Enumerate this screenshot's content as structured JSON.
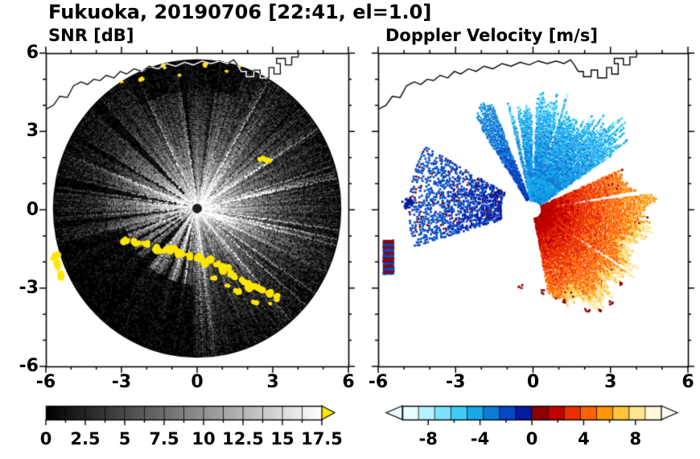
{
  "figure": {
    "title": "Fukuoka, 20190706 [22:41, el=1.0]"
  },
  "chart_data": [
    {
      "type": "heatmap",
      "panel": "snr",
      "title": "SNR [dB]",
      "geometry": "radar-ppi",
      "site": "Fukuoka",
      "date": "20190706",
      "time": "22:41",
      "elevation_deg": 1.0,
      "x_range": [
        -6,
        6
      ],
      "y_range": [
        -6,
        6
      ],
      "x_ticks": [
        -6,
        -3,
        0,
        3,
        6
      ],
      "y_ticks": [
        -6,
        -3,
        0,
        3,
        6
      ],
      "minor_tick_step": 1,
      "radar_radius": 5.7,
      "field_summary": "SNR decays radially from >17.5 dB at the radar (bright white core, dark center dot) to ~0 dB near 5.7 range; thin bright radial streaks at many azimuths, dark blocked-beam sectors to the west/southwest, saturated yellow ground clutter along the southern coastline and an isolated echo near (2.6, 2.0)",
      "blocked_sectors_deg": [
        [
          96,
          98
        ],
        [
          133,
          137
        ],
        [
          150,
          152
        ],
        [
          168,
          171
        ],
        [
          185,
          188
        ],
        [
          197,
          200
        ],
        [
          205,
          208
        ],
        [
          213,
          217
        ],
        [
          222,
          230
        ],
        [
          243,
          246
        ],
        [
          255,
          258
        ]
      ],
      "clutter_points": [
        [
          -2.85,
          -1.15,
          5
        ],
        [
          -2.45,
          -1.25,
          6
        ],
        [
          -2.05,
          -1.3,
          5
        ],
        [
          -1.7,
          -1.45,
          6
        ],
        [
          -1.35,
          -1.5,
          5
        ],
        [
          -1.0,
          -1.55,
          6
        ],
        [
          -0.65,
          -1.7,
          6
        ],
        [
          -0.3,
          -1.8,
          5
        ],
        [
          0.05,
          -1.9,
          6
        ],
        [
          0.4,
          -2.0,
          6
        ],
        [
          0.75,
          -2.1,
          5
        ],
        [
          1.1,
          -2.3,
          6
        ],
        [
          1.45,
          -2.5,
          6
        ],
        [
          1.8,
          -2.75,
          5
        ],
        [
          2.15,
          -2.95,
          6
        ],
        [
          2.5,
          -3.05,
          5
        ],
        [
          2.85,
          -3.2,
          6
        ],
        [
          3.2,
          -3.35,
          5
        ],
        [
          0.7,
          -2.6,
          4
        ],
        [
          1.6,
          -3.1,
          4
        ],
        [
          2.3,
          -3.55,
          4
        ],
        [
          2.9,
          -3.6,
          3
        ],
        [
          1.2,
          -2.9,
          3
        ],
        [
          -5.62,
          -1.8,
          5
        ],
        [
          -5.5,
          -2.15,
          6
        ],
        [
          -5.42,
          -2.5,
          5
        ],
        [
          2.55,
          1.95,
          5
        ],
        [
          2.8,
          1.9,
          4
        ],
        [
          -2.2,
          5.0,
          3
        ],
        [
          -1.35,
          5.5,
          3
        ],
        [
          -0.7,
          5.15,
          2
        ],
        [
          0.35,
          5.55,
          3
        ],
        [
          1.15,
          5.3,
          2
        ],
        [
          1.7,
          5.5,
          2
        ],
        [
          -3.0,
          4.9,
          2
        ]
      ],
      "colorbar": {
        "min": 0,
        "max": 17.5,
        "segment_step": 1.25,
        "label_values": [
          0,
          2.5,
          5,
          7.5,
          10,
          12.5,
          15,
          17.5
        ],
        "gradient": [
          "#000000",
          "#ffffff"
        ],
        "over_arrow_color": "#ffe600"
      }
    },
    {
      "type": "heatmap",
      "panel": "velocity",
      "title": "Doppler Velocity [m/s]",
      "geometry": "radar-ppi",
      "x_range": [
        -6,
        6
      ],
      "y_range": [
        -6,
        6
      ],
      "x_ticks": [
        -6,
        -3,
        0,
        3,
        6
      ],
      "y_ticks": [
        -6,
        -3,
        0,
        3,
        6
      ],
      "minor_tick_step": 1,
      "field_summary": "Inbound (blue, -2 to -5 m/s) fan to the north/northeast, narrow inbound wedge to the northwest, patchy weak inbound (navy) echoes to the west; outbound (orange to yellow, +2 to +7 m/s) fan to the south-southeast with dark-red speckled rim; small striped red/blue patch at far west; white data-gap spokes between sectors",
      "regions": [
        {
          "name": "inbound-north-fan",
          "angle_deg": [
            34,
            104
          ],
          "r_inner": 0.35,
          "r_outer": 4.15,
          "v0": -2.8,
          "v_slope": -0.5
        },
        {
          "name": "inbound-nw-wedge",
          "angle_deg": [
            111.5,
            123
          ],
          "r_inner": 0.4,
          "r_outer": 4.2,
          "v0": -1.3,
          "v_slope": -0.5
        },
        {
          "name": "inbound-west-patches",
          "angle_deg": [
            150,
            197
          ],
          "r_inner": 1.25,
          "r_outer": 4.85,
          "v0": -0.7,
          "v_slope": -0.25,
          "density": 0.6
        },
        {
          "name": "outbound-se-fan",
          "angle_deg": [
            -80,
            24
          ],
          "r_inner": 0.3,
          "r_outer": 4.3,
          "v0": 1.1,
          "v_slope": 1.05,
          "rim_boost": 2.2
        }
      ],
      "gap_spokes_deg": [
        [
          88.5,
          91
        ],
        [
          99,
          100.8
        ],
        [
          74,
          75.2
        ],
        [
          8.2,
          9.6
        ],
        [
          -33.5,
          -32.2
        ]
      ],
      "striped_patch": {
        "x": [
          -5.78,
          -5.42
        ],
        "y": [
          -2.45,
          -1.15
        ]
      },
      "blue_blob": {
        "x": -4.85,
        "y": 0.25,
        "r": 0.22
      },
      "red_specks": [
        [
          0.35,
          -3.15
        ],
        [
          1.15,
          -3.5
        ],
        [
          2.1,
          -3.85
        ],
        [
          3.0,
          -3.55
        ],
        [
          -0.5,
          -2.95
        ],
        [
          3.35,
          -2.8
        ],
        [
          2.6,
          -3.9
        ]
      ],
      "colorbar": {
        "min": -10,
        "max": 10,
        "segment_step": 1.25,
        "label_values": [
          -8,
          -4,
          0,
          4,
          8
        ],
        "segment_colors": [
          "#e8fdff",
          "#b5f2ff",
          "#7ce2ff",
          "#3ecdf8",
          "#18a8ea",
          "#0b7bd8",
          "#0547c4",
          "#021b9e",
          "#8d0000",
          "#c30000",
          "#e93000",
          "#ff6200",
          "#ff9500",
          "#ffc43d",
          "#ffe492",
          "#fff8d8"
        ],
        "under_arrow_color": "#eafcff",
        "over_arrow_color": "#fffdf2"
      }
    }
  ],
  "coastline_points": [
    [
      -6.0,
      3.85
    ],
    [
      -5.7,
      4.0
    ],
    [
      -5.45,
      4.35
    ],
    [
      -5.15,
      4.3
    ],
    [
      -4.9,
      4.75
    ],
    [
      -4.6,
      4.9
    ],
    [
      -4.35,
      4.8
    ],
    [
      -4.1,
      5.0
    ],
    [
      -3.85,
      4.95
    ],
    [
      -3.6,
      5.15
    ],
    [
      -3.3,
      5.05
    ],
    [
      -3.05,
      5.3
    ],
    [
      -2.8,
      5.2
    ],
    [
      -2.5,
      5.4
    ],
    [
      -2.2,
      5.3
    ],
    [
      -1.9,
      5.5
    ],
    [
      -1.55,
      5.4
    ],
    [
      -1.2,
      5.6
    ],
    [
      -0.85,
      5.5
    ],
    [
      -0.5,
      5.65
    ],
    [
      -0.15,
      5.55
    ],
    [
      0.2,
      5.7
    ],
    [
      0.55,
      5.6
    ],
    [
      0.9,
      5.7
    ],
    [
      1.2,
      5.6
    ],
    [
      1.45,
      5.75
    ],
    [
      1.6,
      5.55
    ],
    [
      1.75,
      5.3
    ],
    [
      1.95,
      5.3
    ],
    [
      1.95,
      5.1
    ],
    [
      2.25,
      5.1
    ],
    [
      2.25,
      5.35
    ],
    [
      2.5,
      5.35
    ],
    [
      2.5,
      5.05
    ],
    [
      2.85,
      5.05
    ],
    [
      2.85,
      5.45
    ],
    [
      3.05,
      5.45
    ],
    [
      3.05,
      5.2
    ],
    [
      3.3,
      5.2
    ],
    [
      3.3,
      5.6
    ],
    [
      3.15,
      5.6
    ],
    [
      3.15,
      5.8
    ],
    [
      3.5,
      5.8
    ],
    [
      3.5,
      5.55
    ],
    [
      3.75,
      5.55
    ],
    [
      3.75,
      5.85
    ],
    [
      4.0,
      5.85
    ],
    [
      4.05,
      6.05
    ]
  ]
}
